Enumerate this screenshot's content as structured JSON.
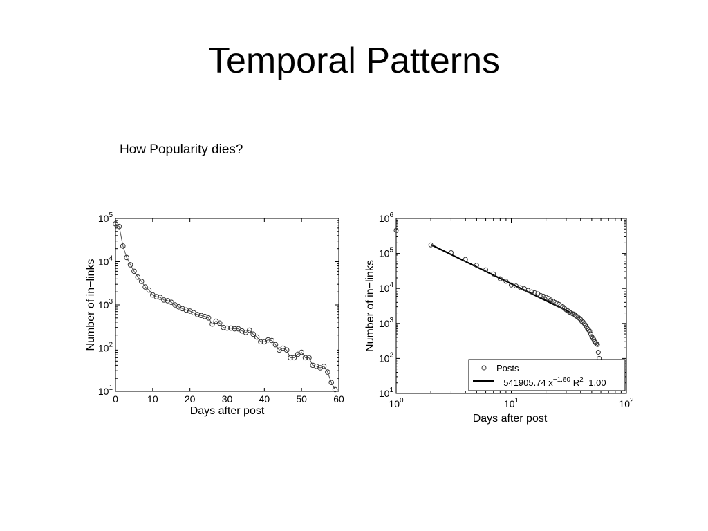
{
  "slide": {
    "title": "Temporal Patterns",
    "subtitle": "How Popularity dies?"
  },
  "chart_data": [
    {
      "type": "line",
      "title": "",
      "xlabel": "Days after post",
      "ylabel": "Number of in−links",
      "yscale": "log",
      "xlim": [
        0,
        60
      ],
      "ylim": [
        10,
        100000
      ],
      "x_ticks": [
        "0",
        "10",
        "20",
        "30",
        "40",
        "50",
        "60"
      ],
      "y_ticks": [
        {
          "base": "10",
          "exp": "1"
        },
        {
          "base": "10",
          "exp": "2"
        },
        {
          "base": "10",
          "exp": "3"
        },
        {
          "base": "10",
          "exp": "4"
        },
        {
          "base": "10",
          "exp": "5"
        }
      ],
      "grid": false,
      "marker": "circle",
      "series": [
        {
          "x": [
            0,
            1,
            2,
            3,
            4,
            5,
            6,
            7,
            8,
            9,
            10,
            11,
            12,
            13,
            14,
            15,
            16,
            17,
            18,
            19,
            20,
            21,
            22,
            23,
            24,
            25,
            26,
            27,
            28,
            29,
            30,
            31,
            32,
            33,
            34,
            35,
            36,
            37,
            38,
            39,
            40,
            41,
            42,
            43,
            44,
            45,
            46,
            47,
            48,
            49,
            50,
            51,
            52,
            53,
            54,
            55,
            56,
            57,
            58,
            59
          ],
          "y": [
            75000,
            65000,
            23000,
            12500,
            8500,
            6000,
            4400,
            3500,
            2600,
            2200,
            1700,
            1550,
            1500,
            1300,
            1250,
            1150,
            1000,
            900,
            820,
            760,
            720,
            660,
            600,
            570,
            540,
            500,
            360,
            420,
            380,
            300,
            290,
            290,
            280,
            280,
            250,
            230,
            260,
            210,
            180,
            140,
            140,
            155,
            150,
            120,
            90,
            100,
            90,
            60,
            60,
            72,
            80,
            60,
            60,
            40,
            38,
            35,
            38,
            28,
            16,
            11
          ]
        }
      ]
    },
    {
      "type": "scatter",
      "title": "",
      "xlabel": "Days after post",
      "ylabel": "Number of in−links",
      "xscale": "log",
      "yscale": "log",
      "xlim": [
        1,
        100
      ],
      "ylim": [
        10,
        1000000
      ],
      "x_ticks": [
        {
          "base": "10",
          "exp": "0"
        },
        {
          "base": "10",
          "exp": "1"
        },
        {
          "base": "10",
          "exp": "2"
        }
      ],
      "y_ticks": [
        {
          "base": "10",
          "exp": "1"
        },
        {
          "base": "10",
          "exp": "2"
        },
        {
          "base": "10",
          "exp": "3"
        },
        {
          "base": "10",
          "exp": "4"
        },
        {
          "base": "10",
          "exp": "5"
        },
        {
          "base": "10",
          "exp": "6"
        }
      ],
      "grid": false,
      "legend_position": "bottom-right",
      "series": [
        {
          "name": "Posts",
          "marker": "circle",
          "x": [
            1,
            2,
            3,
            4,
            5,
            6,
            7,
            8,
            9,
            10,
            11,
            12,
            13,
            14,
            15,
            16,
            17,
            18,
            19,
            20,
            21,
            22,
            23,
            24,
            25,
            26,
            27,
            28,
            29,
            30,
            31,
            32,
            33,
            34,
            35,
            36,
            37,
            38,
            39,
            40,
            41,
            42,
            43,
            44,
            45,
            46,
            47,
            48,
            49,
            50,
            51,
            52,
            53,
            54,
            55,
            56,
            57,
            58
          ],
          "y": [
            460000,
            175000,
            105000,
            68000,
            46000,
            34000,
            26000,
            19000,
            16000,
            12500,
            11800,
            10500,
            9800,
            8800,
            8000,
            7500,
            7000,
            6300,
            6000,
            5600,
            5200,
            4700,
            4300,
            4000,
            3700,
            3500,
            3200,
            3000,
            2700,
            2450,
            2300,
            2100,
            2000,
            1900,
            1850,
            1700,
            1600,
            1500,
            1400,
            1300,
            1150,
            1100,
            1000,
            900,
            800,
            700,
            650,
            600,
            500,
            420,
            380,
            350,
            300,
            280,
            260,
            250,
            150,
            100
          ]
        }
      ],
      "fit": {
        "coef": 541905.74,
        "exponent": -1.6,
        "x_range": [
          2,
          32
        ],
        "legend_label_pre": "= 541905.74 x",
        "legend_exp": "−1.60",
        "legend_r2_pre": "R",
        "legend_r2_exp": "2",
        "legend_r2_post": "=1.00"
      }
    }
  ]
}
